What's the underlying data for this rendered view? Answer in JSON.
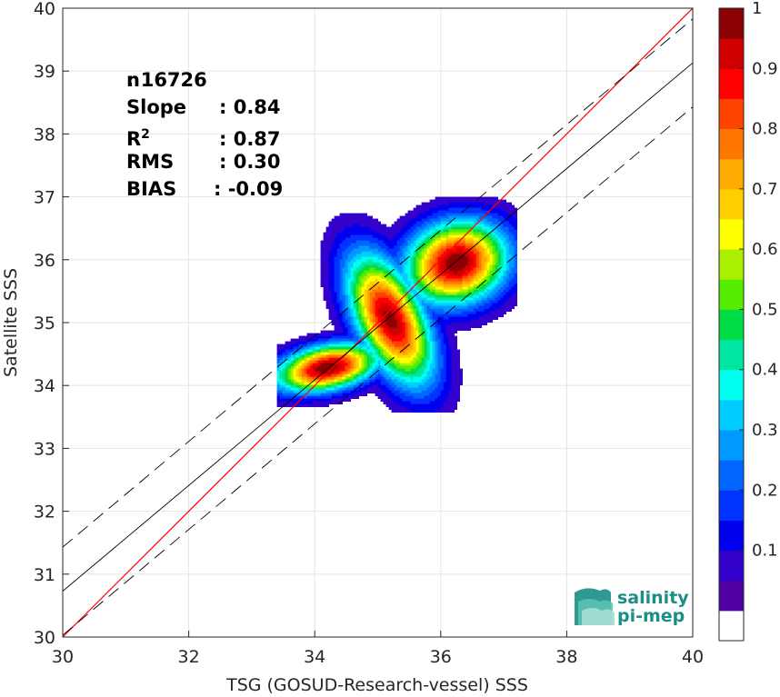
{
  "chart_data": {
    "type": "heatmap",
    "title": "",
    "xlabel": "TSG (GOSUD-Research-vessel) SSS",
    "ylabel": "Satellite SSS",
    "xlim": [
      30,
      40
    ],
    "ylim": [
      30,
      40
    ],
    "x_ticks": [
      "30",
      "32",
      "34",
      "36",
      "38",
      "40"
    ],
    "y_ticks": [
      "30",
      "31",
      "32",
      "33",
      "34",
      "35",
      "36",
      "37",
      "38",
      "39",
      "40"
    ],
    "grid": true,
    "stats": [
      {
        "label": "n",
        "sep": ":",
        "value": "16726"
      },
      {
        "label": "Slope",
        "sep": ":",
        "value": "0.84"
      },
      {
        "label": "R",
        "sup": "2",
        "sep": ":",
        "value": "0.87"
      },
      {
        "label": "RMS",
        "sep": ":",
        "value": "0.30"
      },
      {
        "label": "BIAS",
        "sep": ":",
        "value": "-0.09"
      }
    ],
    "lines": [
      {
        "kind": "identity",
        "color": "#ff0000",
        "style": "solid",
        "x": [
          30,
          40
        ],
        "y": [
          30,
          40
        ]
      },
      {
        "kind": "regression",
        "color": "#000000",
        "style": "solid",
        "x": [
          30,
          40
        ],
        "y": [
          30.73,
          39.13
        ]
      },
      {
        "kind": "regression_upper",
        "color": "#000000",
        "style": "dashed",
        "x": [
          30,
          40
        ],
        "y": [
          31.43,
          39.83
        ]
      },
      {
        "kind": "regression_lower",
        "color": "#000000",
        "style": "dashed",
        "x": [
          30,
          40
        ],
        "y": [
          30.03,
          38.43
        ]
      }
    ],
    "density_peaks": [
      {
        "x": 34.2,
        "y": 34.28,
        "peak": 1.0,
        "sx": 0.28,
        "sy": 0.12,
        "rot": 0.2
      },
      {
        "x": 35.2,
        "y": 35.05,
        "peak": 0.97,
        "sx": 0.18,
        "sy": 0.38,
        "rot": 0.45
      },
      {
        "x": 36.25,
        "y": 35.95,
        "peak": 1.0,
        "sx": 0.28,
        "sy": 0.22,
        "rot": 0.3
      }
    ],
    "colorbar": {
      "ticks": [
        "0.1",
        "0.2",
        "0.3",
        "0.4",
        "0.5",
        "0.6",
        "0.7",
        "0.8",
        "0.9",
        "1"
      ],
      "levels": [
        "#ffffff",
        "#5000a0",
        "#3300cc",
        "#0000ee",
        "#0033ff",
        "#0066ff",
        "#0099ff",
        "#00ccff",
        "#00ffee",
        "#00e6a0",
        "#00dd44",
        "#55ee00",
        "#aaee00",
        "#ffff00",
        "#ffd000",
        "#ffaa00",
        "#ff7700",
        "#ff4400",
        "#ff0000",
        "#d00000",
        "#8b0000"
      ]
    }
  },
  "logo": {
    "line1": "salinity",
    "line2": "pi-mep",
    "colors": [
      "#1a8f86",
      "#5cc3b5",
      "#a8e0d4"
    ]
  }
}
